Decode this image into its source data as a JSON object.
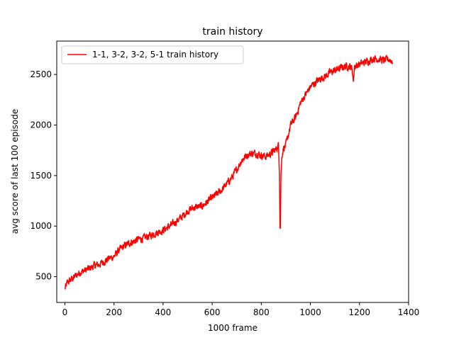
{
  "chart_data": {
    "type": "line",
    "title": "train history",
    "xlabel": "1000 frame",
    "ylabel": "avg score of last 100 episode",
    "xlim": [
      -33,
      1400
    ],
    "ylim": [
      245,
      2830
    ],
    "xticks": [
      0,
      200,
      400,
      600,
      800,
      1000,
      1200,
      1400
    ],
    "yticks": [
      500,
      1000,
      1500,
      2000,
      2500
    ],
    "grid": false,
    "legend_position": "top-left",
    "series": [
      {
        "name": "1-1, 3-2, 3-2, 5-1 train history",
        "color": "#ff0000",
        "noise_amplitude": 55,
        "points": [
          [
            0,
            380
          ],
          [
            10,
            440
          ],
          [
            20,
            460
          ],
          [
            40,
            500
          ],
          [
            60,
            540
          ],
          [
            80,
            560
          ],
          [
            100,
            580
          ],
          [
            120,
            610
          ],
          [
            140,
            620
          ],
          [
            160,
            650
          ],
          [
            180,
            680
          ],
          [
            200,
            700
          ],
          [
            220,
            760
          ],
          [
            240,
            800
          ],
          [
            260,
            830
          ],
          [
            280,
            850
          ],
          [
            300,
            870
          ],
          [
            320,
            880
          ],
          [
            340,
            900
          ],
          [
            360,
            920
          ],
          [
            380,
            940
          ],
          [
            400,
            960
          ],
          [
            420,
            990
          ],
          [
            440,
            1020
          ],
          [
            460,
            1060
          ],
          [
            480,
            1100
          ],
          [
            500,
            1150
          ],
          [
            520,
            1180
          ],
          [
            540,
            1190
          ],
          [
            560,
            1200
          ],
          [
            580,
            1240
          ],
          [
            600,
            1280
          ],
          [
            620,
            1320
          ],
          [
            640,
            1360
          ],
          [
            660,
            1420
          ],
          [
            680,
            1480
          ],
          [
            700,
            1560
          ],
          [
            720,
            1650
          ],
          [
            740,
            1700
          ],
          [
            760,
            1720
          ],
          [
            780,
            1720
          ],
          [
            800,
            1700
          ],
          [
            820,
            1690
          ],
          [
            840,
            1720
          ],
          [
            860,
            1760
          ],
          [
            870,
            1800
          ],
          [
            874,
            1500
          ],
          [
            876,
            990
          ],
          [
            878,
            980
          ],
          [
            880,
            1500
          ],
          [
            884,
            1700
          ],
          [
            890,
            1770
          ],
          [
            900,
            1800
          ],
          [
            910,
            1900
          ],
          [
            920,
            2000
          ],
          [
            940,
            2080
          ],
          [
            960,
            2220
          ],
          [
            980,
            2300
          ],
          [
            1000,
            2380
          ],
          [
            1020,
            2420
          ],
          [
            1040,
            2460
          ],
          [
            1060,
            2480
          ],
          [
            1080,
            2520
          ],
          [
            1100,
            2540
          ],
          [
            1120,
            2560
          ],
          [
            1140,
            2580
          ],
          [
            1160,
            2580
          ],
          [
            1170,
            2560
          ],
          [
            1175,
            2430
          ],
          [
            1180,
            2580
          ],
          [
            1200,
            2600
          ],
          [
            1220,
            2620
          ],
          [
            1240,
            2640
          ],
          [
            1260,
            2660
          ],
          [
            1280,
            2650
          ],
          [
            1300,
            2640
          ],
          [
            1320,
            2650
          ],
          [
            1335,
            2630
          ]
        ]
      }
    ]
  }
}
